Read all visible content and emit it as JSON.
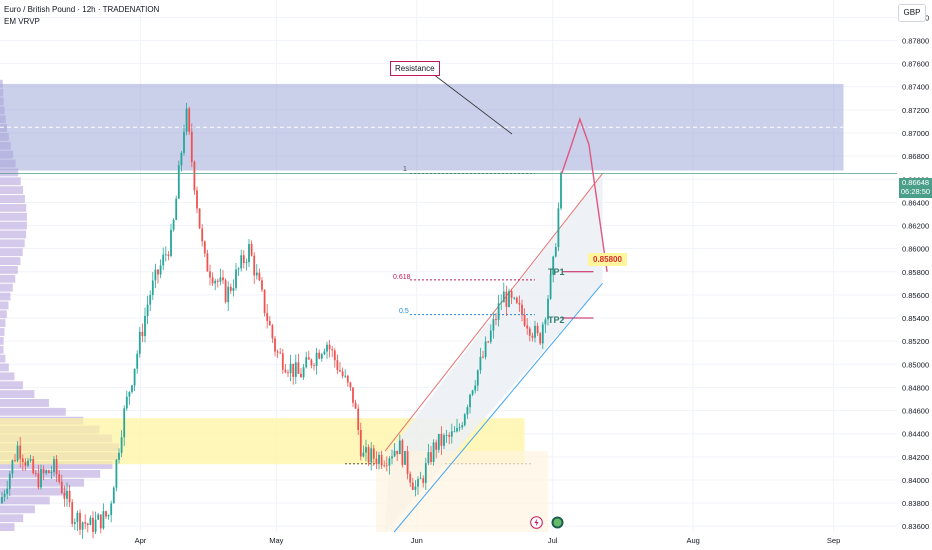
{
  "header": {
    "symbol_line": "Euro / British Pound · 12h · TRADENATION",
    "indicator": "EM VRVP"
  },
  "currency": "GBP",
  "last_price": "0.86648",
  "countdown": "06:28:50",
  "annotations": {
    "resistance": "Resistance",
    "target": "0.85800",
    "tp1": "TP1",
    "tp2": "TP2",
    "fib_1": "1",
    "fib_618": "0.618",
    "fib_05": "0.5"
  },
  "colors": {
    "up": "#26a69a",
    "down": "#ef5350",
    "resistance_zone": "#9fa8da",
    "support_zone": "#fff59d",
    "channel_upper": "#e57373",
    "channel_lower": "#42a5f5",
    "price_line": "#4a9f8a",
    "volume_profile": "#b39ddb"
  },
  "icons": [
    "lightning-icon",
    "record-icon"
  ],
  "chart_data": {
    "type": "candlestick",
    "timeframe": "12h",
    "x_tick_labels": [
      "Apr",
      "May",
      "Jun",
      "Jul",
      "Aug",
      "Sep"
    ],
    "y_tick_labels": [
      "0.88000",
      "0.87800",
      "0.87600",
      "0.87400",
      "0.87200",
      "0.87000",
      "0.86800",
      "0.86600",
      "0.86400",
      "0.86200",
      "0.86000",
      "0.85800",
      "0.85600",
      "0.85400",
      "0.85200",
      "0.85000",
      "0.84800",
      "0.84600",
      "0.84400",
      "0.84200",
      "0.84000",
      "0.83800",
      "0.83600"
    ],
    "ylim": [
      0.8355,
      0.8815
    ],
    "zones": [
      {
        "name": "resistance",
        "from": 0.8668,
        "to": 0.8742
      },
      {
        "name": "support",
        "from": 0.8414,
        "to": 0.8453
      }
    ],
    "levels": [
      {
        "name": "TP1",
        "value": 0.858
      },
      {
        "name": "TP2",
        "value": 0.854
      }
    ],
    "close_path": [
      {
        "t": "2025-03-01",
        "v": 0.838
      },
      {
        "t": "2025-03-05",
        "v": 0.843
      },
      {
        "t": "2025-03-09",
        "v": 0.84
      },
      {
        "t": "2025-03-13",
        "v": 0.841
      },
      {
        "t": "2025-03-17",
        "v": 0.837
      },
      {
        "t": "2025-03-21",
        "v": 0.836
      },
      {
        "t": "2025-03-25",
        "v": 0.837
      },
      {
        "t": "2025-03-28",
        "v": 0.845
      },
      {
        "t": "2025-04-03",
        "v": 0.856
      },
      {
        "t": "2025-04-08",
        "v": 0.861
      },
      {
        "t": "2025-04-11",
        "v": 0.872
      },
      {
        "t": "2025-04-15",
        "v": 0.859
      },
      {
        "t": "2025-04-20",
        "v": 0.856
      },
      {
        "t": "2025-04-25",
        "v": 0.86
      },
      {
        "t": "2025-05-01",
        "v": 0.851
      },
      {
        "t": "2025-05-06",
        "v": 0.849
      },
      {
        "t": "2025-05-12",
        "v": 0.852
      },
      {
        "t": "2025-05-18",
        "v": 0.847
      },
      {
        "t": "2025-05-20",
        "v": 0.842
      },
      {
        "t": "2025-05-25",
        "v": 0.842
      },
      {
        "t": "2025-05-28",
        "v": 0.843
      },
      {
        "t": "2025-06-01",
        "v": 0.839
      },
      {
        "t": "2025-06-05",
        "v": 0.843
      },
      {
        "t": "2025-06-10",
        "v": 0.844
      },
      {
        "t": "2025-06-13",
        "v": 0.848
      },
      {
        "t": "2025-06-16",
        "v": 0.851
      },
      {
        "t": "2025-06-20",
        "v": 0.856
      },
      {
        "t": "2025-06-25",
        "v": 0.854
      },
      {
        "t": "2025-06-28",
        "v": 0.852
      },
      {
        "t": "2025-07-01",
        "v": 0.858
      },
      {
        "t": "2025-07-03",
        "v": 0.8665
      }
    ],
    "projection": [
      {
        "t": "2025-07-03",
        "v": 0.8665
      },
      {
        "t": "2025-07-05",
        "v": 0.8688
      },
      {
        "t": "2025-07-07",
        "v": 0.8712
      },
      {
        "t": "2025-07-09",
        "v": 0.869
      },
      {
        "t": "2025-07-13",
        "v": 0.858
      }
    ]
  }
}
